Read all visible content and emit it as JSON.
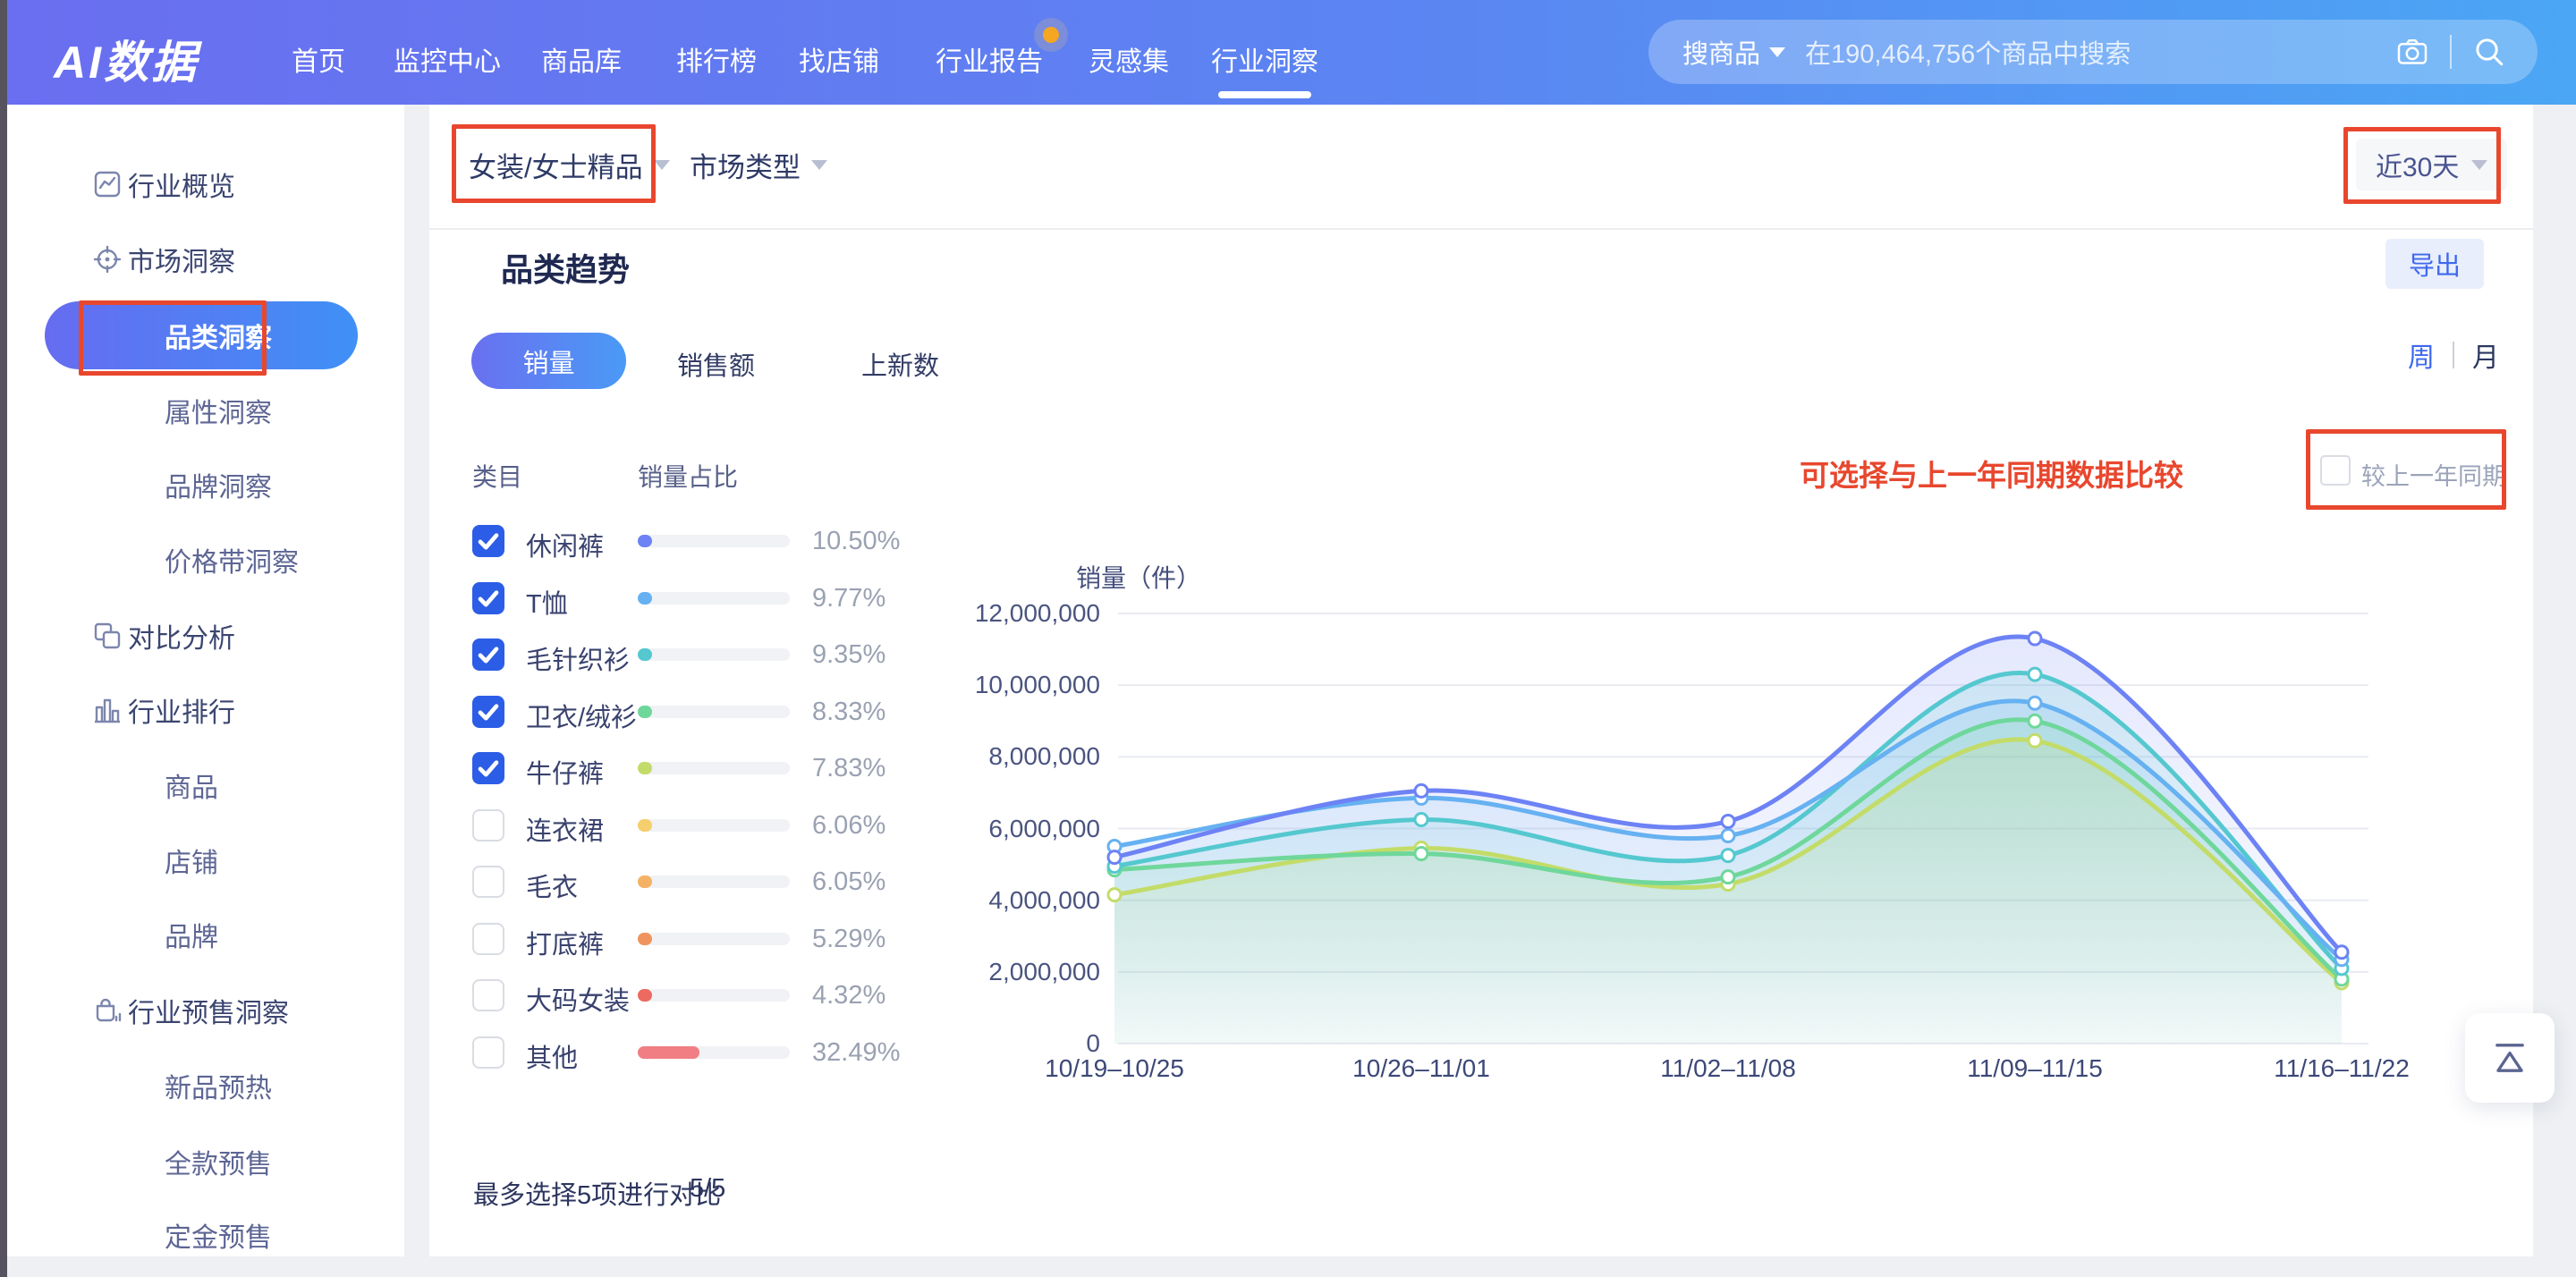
{
  "nav": {
    "logo": "AI数据",
    "items": [
      {
        "label": "首页"
      },
      {
        "label": "监控中心"
      },
      {
        "label": "商品库"
      },
      {
        "label": "排行榜"
      },
      {
        "label": "找店铺"
      },
      {
        "label": "行业报告",
        "badge": true
      },
      {
        "label": "灵感集"
      },
      {
        "label": "行业洞察",
        "active": true
      }
    ],
    "search": {
      "scope": "搜商品",
      "placeholder": "在190,464,756个商品中搜索",
      "icons": [
        "camera-icon",
        "search-icon"
      ]
    }
  },
  "sidebar": {
    "items": [
      {
        "label": "行业概览",
        "level": 0,
        "icon": "line-chart-icon"
      },
      {
        "label": "市场洞察",
        "level": 0,
        "icon": "crosshair-icon"
      },
      {
        "label": "品类洞察",
        "level": 1,
        "active": true
      },
      {
        "label": "属性洞察",
        "level": 1
      },
      {
        "label": "品牌洞察",
        "level": 1
      },
      {
        "label": "价格带洞察",
        "level": 1
      },
      {
        "label": "对比分析",
        "level": 0,
        "icon": "compare-icon"
      },
      {
        "label": "行业排行",
        "level": 0,
        "icon": "bar-chart-icon"
      },
      {
        "label": "商品",
        "level": 1
      },
      {
        "label": "店铺",
        "level": 1
      },
      {
        "label": "品牌",
        "level": 1
      },
      {
        "label": "行业预售洞察",
        "level": 0,
        "icon": "bag-icon"
      },
      {
        "label": "新品预热",
        "level": 1
      },
      {
        "label": "全款预售",
        "level": 1
      },
      {
        "label": "定金预售",
        "level": 1
      }
    ]
  },
  "filters": {
    "category": "女装/女士精品",
    "market_type": "市场类型",
    "date_range": "近30天"
  },
  "section": {
    "title": "品类趋势",
    "export_label": "导出",
    "tabs": [
      {
        "label": "销量",
        "active": true
      },
      {
        "label": "销售额",
        "active": false
      },
      {
        "label": "上新数",
        "active": false
      }
    ],
    "period": {
      "week": "周",
      "month": "月",
      "active": "周"
    },
    "annotation": "可选择与上一年同期数据比较",
    "compare_label": "较上一年同期",
    "compare_checked": false
  },
  "category_table": {
    "headers": [
      "类目",
      "销量占比"
    ],
    "rows": [
      {
        "label": "休闲裤",
        "checked": true,
        "pct": "10.50%",
        "pct_value": 10.5,
        "color": "#6d82f4"
      },
      {
        "label": "T恤",
        "checked": true,
        "pct": "9.77%",
        "pct_value": 9.77,
        "color": "#66b1f1"
      },
      {
        "label": "毛针织衫",
        "checked": true,
        "pct": "9.35%",
        "pct_value": 9.35,
        "color": "#55c8cf"
      },
      {
        "label": "卫衣/绒衫",
        "checked": true,
        "pct": "8.33%",
        "pct_value": 8.33,
        "color": "#6fd79b"
      },
      {
        "label": "牛仔裤",
        "checked": true,
        "pct": "7.83%",
        "pct_value": 7.83,
        "color": "#c3dc69"
      },
      {
        "label": "连衣裙",
        "checked": false,
        "pct": "6.06%",
        "pct_value": 6.06,
        "color": "#f5cf6d"
      },
      {
        "label": "毛衣",
        "checked": false,
        "pct": "6.05%",
        "pct_value": 6.05,
        "color": "#f5b266"
      },
      {
        "label": "打底裤",
        "checked": false,
        "pct": "5.29%",
        "pct_value": 5.29,
        "color": "#f0945f"
      },
      {
        "label": "大码女装",
        "checked": false,
        "pct": "4.32%",
        "pct_value": 4.32,
        "color": "#ed6a60"
      },
      {
        "label": "其他",
        "checked": false,
        "pct": "32.49%",
        "pct_value": 32.49,
        "color": "#f07e83"
      }
    ],
    "footer_note": "最多选择5项进行对比",
    "selection_count": "5/5"
  },
  "chart_data": {
    "type": "line",
    "title": "销量（件）",
    "x": [
      "10/19–10/25",
      "10/26–11/01",
      "11/02–11/08",
      "11/09–11/15",
      "11/16–11/22"
    ],
    "series": [
      {
        "name": "休闲裤",
        "color": "#6d82f4",
        "values": [
          5200000,
          7050000,
          6200000,
          11300000,
          2550000
        ]
      },
      {
        "name": "T恤",
        "color": "#66b1f1",
        "values": [
          5500000,
          6850000,
          5800000,
          9500000,
          2350000
        ]
      },
      {
        "name": "毛针织衫",
        "color": "#55c8cf",
        "values": [
          4950000,
          6250000,
          5250000,
          10300000,
          2100000
        ]
      },
      {
        "name": "卫衣/绒衫",
        "color": "#6fd79b",
        "values": [
          4850000,
          5300000,
          4650000,
          9000000,
          1800000
        ]
      },
      {
        "name": "牛仔裤",
        "color": "#c3dc69",
        "values": [
          4150000,
          5450000,
          4450000,
          8450000,
          1700000
        ]
      }
    ],
    "ylim": [
      0,
      12000000
    ],
    "y_ticks": [
      "12,000,000",
      "10,000,000",
      "8,000,000",
      "6,000,000",
      "4,000,000",
      "2,000,000",
      "0"
    ],
    "grid": true,
    "smooth": true,
    "area": true,
    "legend_position": "none"
  }
}
